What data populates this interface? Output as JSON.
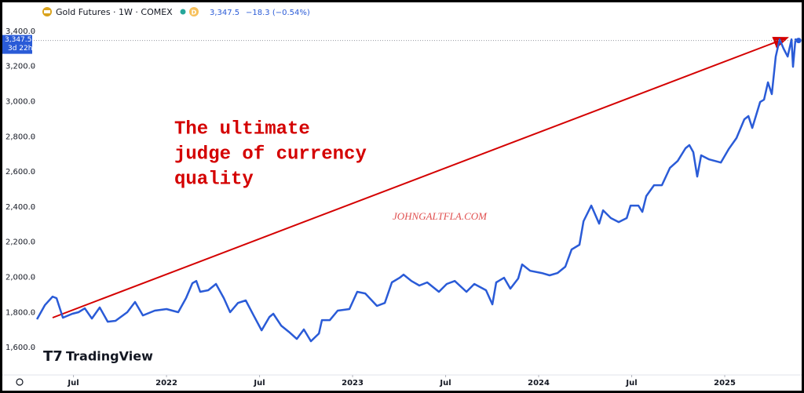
{
  "chart_data": {
    "type": "line",
    "title": "Gold Futures · 1W · COMEX",
    "badge": "D",
    "header_price": "3,347.5",
    "header_change": "−18.3 (−0.54%)",
    "countdown": "3d 22h",
    "annotation": [
      "The ultimate",
      "judge of currency",
      "quality"
    ],
    "watermark": "JOHNGALTFLA.COM",
    "logo": "TradingView",
    "color": "#2a5bd7",
    "x": [
      2021.304,
      2021.346,
      2021.388,
      2021.409,
      2021.443,
      2021.494,
      2021.527,
      2021.561,
      2021.599,
      2021.641,
      2021.684,
      2021.726,
      2021.789,
      2021.831,
      2021.873,
      2021.937,
      2022.0,
      2022.063,
      2022.105,
      2022.139,
      2022.16,
      2022.181,
      2022.224,
      2022.266,
      2022.308,
      2022.342,
      2022.384,
      2022.426,
      2022.468,
      2022.511,
      2022.553,
      2022.574,
      2022.616,
      2022.658,
      2022.7,
      2022.738,
      2022.776,
      2022.819,
      2022.835,
      2022.878,
      2022.92,
      2022.983,
      2023.025,
      2023.068,
      2023.131,
      2023.173,
      2023.211,
      2023.253,
      2023.274,
      2023.316,
      2023.359,
      2023.401,
      2023.464,
      2023.506,
      2023.549,
      2023.612,
      2023.654,
      2023.717,
      2023.751,
      2023.772,
      2023.814,
      2023.848,
      2023.89,
      2023.911,
      2023.954,
      2024.017,
      2024.059,
      2024.101,
      2024.143,
      2024.177,
      2024.219,
      2024.241,
      2024.283,
      2024.325,
      2024.346,
      2024.388,
      2024.43,
      2024.473,
      2024.494,
      2024.536,
      2024.557,
      2024.578,
      2024.62,
      2024.662,
      2024.705,
      2024.747,
      2024.789,
      2024.81,
      2024.831,
      2024.852,
      2024.873,
      2024.916,
      2024.979,
      2025.021,
      2025.063,
      2025.105,
      2025.127,
      2025.148,
      2025.19,
      2025.211,
      2025.232,
      2025.253,
      2025.274,
      2025.295,
      2025.316,
      2025.338,
      2025.359,
      2025.367,
      2025.38,
      2025.397
    ],
    "values": [
      1761,
      1841,
      1890,
      1881,
      1770,
      1792,
      1801,
      1823,
      1765,
      1828,
      1747,
      1752,
      1801,
      1859,
      1783,
      1810,
      1819,
      1801,
      1881,
      1966,
      1979,
      1917,
      1926,
      1962,
      1881,
      1801,
      1854,
      1868,
      1783,
      1698,
      1774,
      1792,
      1725,
      1689,
      1649,
      1703,
      1636,
      1680,
      1756,
      1756,
      1810,
      1819,
      1917,
      1908,
      1837,
      1854,
      1971,
      1997,
      2015,
      1979,
      1953,
      1971,
      1917,
      1962,
      1979,
      1917,
      1962,
      1926,
      1846,
      1971,
      1997,
      1935,
      1993,
      2073,
      2037,
      2024,
      2011,
      2024,
      2060,
      2158,
      2185,
      2319,
      2408,
      2305,
      2381,
      2337,
      2314,
      2337,
      2408,
      2408,
      2372,
      2462,
      2524,
      2524,
      2622,
      2662,
      2734,
      2752,
      2712,
      2573,
      2694,
      2671,
      2653,
      2729,
      2792,
      2899,
      2917,
      2850,
      2997,
      3011,
      3109,
      3042,
      3256,
      3354,
      3301,
      3256,
      3354,
      3198,
      3354,
      3347.5
    ],
    "xlim": [
      2021.274,
      2025.409
    ],
    "ylim": [
      1444,
      3444
    ],
    "xticks": [
      {
        "value": 2021.5,
        "label": "Jul"
      },
      {
        "value": 2022,
        "label": "2022"
      },
      {
        "value": 2022.5,
        "label": "Jul"
      },
      {
        "value": 2023,
        "label": "2023"
      },
      {
        "value": 2023.5,
        "label": "Jul"
      },
      {
        "value": 2024,
        "label": "2024"
      },
      {
        "value": 2024.5,
        "label": "Jul"
      },
      {
        "value": 2025,
        "label": "2025"
      }
    ],
    "yticks": [
      {
        "value": 1600,
        "label": "1,600.0"
      },
      {
        "value": 1800,
        "label": "1,800.0"
      },
      {
        "value": 2000,
        "label": "2,000.0"
      },
      {
        "value": 2200,
        "label": "2,200.0"
      },
      {
        "value": 2400,
        "label": "2,400.0"
      },
      {
        "value": 2600,
        "label": "2,600.0"
      },
      {
        "value": 2800,
        "label": "2,800.0"
      },
      {
        "value": 3000,
        "label": "3,000.0"
      },
      {
        "value": 3200,
        "label": "3,200.0"
      },
      {
        "value": 3400,
        "label": "3,400.0"
      }
    ]
  }
}
